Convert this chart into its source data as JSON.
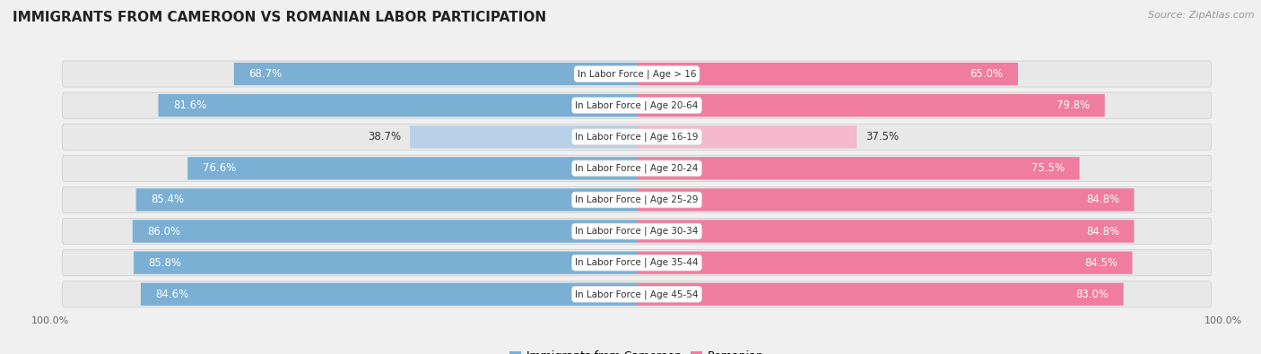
{
  "title": "IMMIGRANTS FROM CAMEROON VS ROMANIAN LABOR PARTICIPATION",
  "source": "Source: ZipAtlas.com",
  "categories": [
    "In Labor Force | Age > 16",
    "In Labor Force | Age 20-64",
    "In Labor Force | Age 16-19",
    "In Labor Force | Age 20-24",
    "In Labor Force | Age 25-29",
    "In Labor Force | Age 30-34",
    "In Labor Force | Age 35-44",
    "In Labor Force | Age 45-54"
  ],
  "cameroon_values": [
    68.7,
    81.6,
    38.7,
    76.6,
    85.4,
    86.0,
    85.8,
    84.6
  ],
  "romanian_values": [
    65.0,
    79.8,
    37.5,
    75.5,
    84.8,
    84.8,
    84.5,
    83.0
  ],
  "cameroon_color": "#7BAFD4",
  "cameroon_color_light": "#B8D0E8",
  "romanian_color": "#F07CA0",
  "romanian_color_light": "#F5B8CC",
  "row_color": "#e8e8e8",
  "background_color": "#f0f0f0",
  "title_fontsize": 11,
  "source_fontsize": 8,
  "value_fontsize": 8.5,
  "category_fontsize": 7.5,
  "legend_fontsize": 9,
  "axis_label_fontsize": 8
}
